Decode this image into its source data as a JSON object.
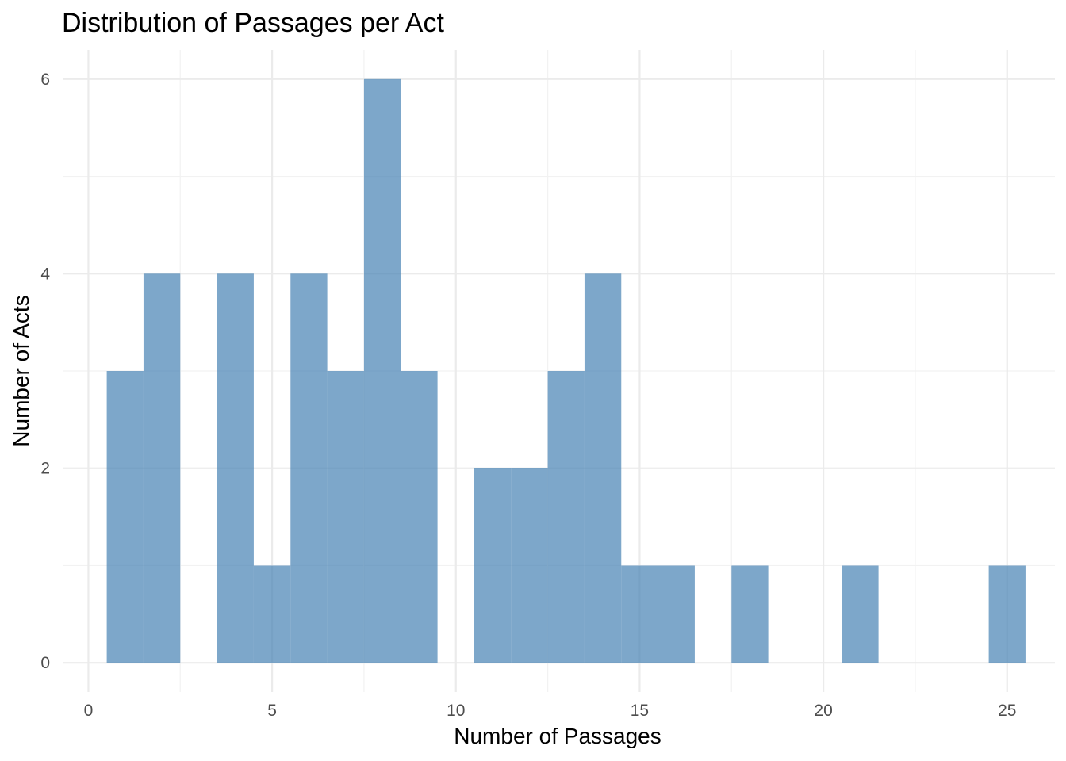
{
  "chart_data": {
    "type": "bar",
    "subtype": "histogram",
    "title": "Distribution of Passages per Act",
    "xlabel": "Number of Passages",
    "ylabel": "Number of Acts",
    "bin_width": 1,
    "bins": [
      {
        "center": 1,
        "count": 3
      },
      {
        "center": 2,
        "count": 4
      },
      {
        "center": 3,
        "count": 0
      },
      {
        "center": 4,
        "count": 4
      },
      {
        "center": 5,
        "count": 1
      },
      {
        "center": 6,
        "count": 4
      },
      {
        "center": 7,
        "count": 3
      },
      {
        "center": 8,
        "count": 6
      },
      {
        "center": 9,
        "count": 3
      },
      {
        "center": 10,
        "count": 0
      },
      {
        "center": 11,
        "count": 2
      },
      {
        "center": 12,
        "count": 2
      },
      {
        "center": 13,
        "count": 3
      },
      {
        "center": 14,
        "count": 4
      },
      {
        "center": 15,
        "count": 1
      },
      {
        "center": 16,
        "count": 1
      },
      {
        "center": 17,
        "count": 0
      },
      {
        "center": 18,
        "count": 1
      },
      {
        "center": 19,
        "count": 0
      },
      {
        "center": 20,
        "count": 0
      },
      {
        "center": 21,
        "count": 1
      },
      {
        "center": 22,
        "count": 0
      },
      {
        "center": 23,
        "count": 0
      },
      {
        "center": 24,
        "count": 0
      },
      {
        "center": 25,
        "count": 1
      }
    ],
    "xlim": [
      -0.7,
      26.3
    ],
    "ylim": [
      -0.3,
      6.3
    ],
    "x_ticks": [
      0,
      5,
      10,
      15,
      20,
      25
    ],
    "x_tick_labels": [
      "0",
      "5",
      "10",
      "15",
      "20",
      "25"
    ],
    "y_ticks": [
      0,
      2,
      4,
      6
    ],
    "y_tick_labels": [
      "0",
      "2",
      "4",
      "6"
    ],
    "x_minor_ticks": [
      2.5,
      7.5,
      12.5,
      17.5,
      22.5
    ],
    "y_minor_ticks": [
      1,
      3,
      5
    ],
    "grid": true,
    "legend": "none",
    "colors": {
      "bar_fill": "#4682B4",
      "bar_opacity": 0.7,
      "grid_major": "#EBEBEB",
      "grid_minor": "#F2F2F2",
      "tick_text": "#4D4D4D",
      "text": "#000000"
    }
  }
}
